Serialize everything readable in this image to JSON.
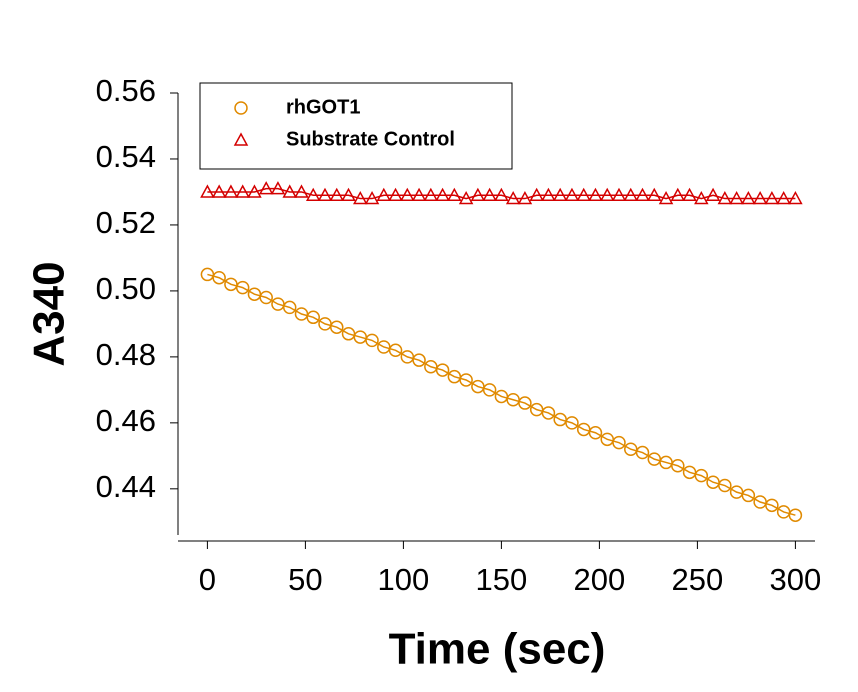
{
  "chart_data": {
    "type": "line",
    "xlabel": "Time (sec)",
    "ylabel": "A340",
    "x": [
      0,
      6,
      12,
      18,
      24,
      30,
      36,
      42,
      48,
      54,
      60,
      66,
      72,
      78,
      84,
      90,
      96,
      102,
      108,
      114,
      120,
      126,
      132,
      138,
      144,
      150,
      156,
      162,
      168,
      174,
      180,
      186,
      192,
      198,
      204,
      210,
      216,
      222,
      228,
      234,
      240,
      246,
      252,
      258,
      264,
      270,
      276,
      282,
      288,
      294,
      300
    ],
    "series": [
      {
        "name": "rhGOT1",
        "color": "#e08a00",
        "marker": "circle",
        "values": [
          0.505,
          0.504,
          0.502,
          0.501,
          0.499,
          0.498,
          0.496,
          0.495,
          0.493,
          0.492,
          0.49,
          0.489,
          0.487,
          0.486,
          0.485,
          0.483,
          0.482,
          0.48,
          0.479,
          0.477,
          0.476,
          0.474,
          0.473,
          0.471,
          0.47,
          0.468,
          0.467,
          0.466,
          0.464,
          0.463,
          0.461,
          0.46,
          0.458,
          0.457,
          0.455,
          0.454,
          0.452,
          0.451,
          0.449,
          0.448,
          0.447,
          0.445,
          0.444,
          0.442,
          0.441,
          0.439,
          0.438,
          0.436,
          0.435,
          0.433,
          0.432
        ]
      },
      {
        "name": "Substrate Control",
        "color": "#d40000",
        "marker": "triangle",
        "values": [
          0.53,
          0.53,
          0.53,
          0.53,
          0.53,
          0.531,
          0.531,
          0.53,
          0.53,
          0.529,
          0.529,
          0.529,
          0.529,
          0.528,
          0.528,
          0.529,
          0.529,
          0.529,
          0.529,
          0.529,
          0.529,
          0.529,
          0.528,
          0.529,
          0.529,
          0.529,
          0.528,
          0.528,
          0.529,
          0.529,
          0.529,
          0.529,
          0.529,
          0.529,
          0.529,
          0.529,
          0.529,
          0.529,
          0.529,
          0.528,
          0.529,
          0.529,
          0.528,
          0.529,
          0.528,
          0.528,
          0.528,
          0.528,
          0.528,
          0.528,
          0.528
        ]
      }
    ],
    "xlim": [
      -15,
      310
    ],
    "xticks": [
      0,
      50,
      100,
      150,
      200,
      250,
      300
    ],
    "ylim": [
      0.426,
      0.56
    ],
    "yticks": [
      {
        "value": 0.44,
        "label": "0.44"
      },
      {
        "value": 0.46,
        "label": "0.46"
      },
      {
        "value": 0.48,
        "label": "0.48"
      },
      {
        "value": 0.5,
        "label": "0.50"
      },
      {
        "value": 0.52,
        "label": "0.52"
      },
      {
        "value": 0.54,
        "label": "0.54"
      },
      {
        "value": 0.56,
        "label": "0.56"
      }
    ],
    "grid": false,
    "legend_position": "upper left"
  }
}
